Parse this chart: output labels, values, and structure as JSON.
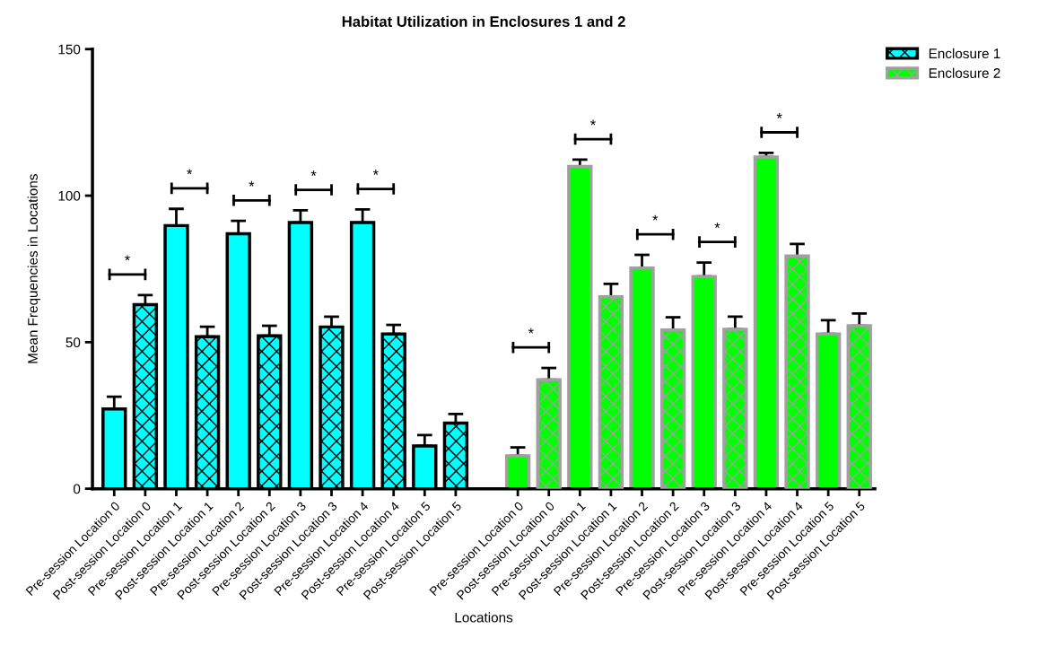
{
  "chart_data": {
    "type": "bar",
    "title": "Habitat Utilization in Enclosures 1 and 2",
    "xlabel": "Locations",
    "ylabel": "Mean Frequencies in Locations",
    "categories": [
      "Pre-session Location 0",
      "Post-session Location 0",
      "Pre-session Location 1",
      "Post-session Location 1",
      "Pre-session Location 2",
      "Post-session Location 2",
      "Pre-session Location 3",
      "Post-session Location 3",
      "Pre-session Location 4",
      "Post-session Location 4",
      "Pre-session Location 5",
      "Post-session Location 5",
      null,
      "Pre-session Location 0",
      "Post-session Location 0",
      "Pre-session Location 1",
      "Post-session Location 1",
      "Pre-session Location 2",
      "Post-session Location 2",
      "Pre-session Location 3",
      "Post-session Location 3",
      "Pre-session Location 4",
      "Post-session Location 4",
      "Pre-session Location 5",
      "Post-session Location 5"
    ],
    "series": [
      {
        "name": "Enclosure 1",
        "color": "#00ffff",
        "values": [
          27.2,
          62.8,
          89.8,
          51.9,
          87.0,
          52.2,
          90.8,
          55.2,
          90.8,
          52.8,
          14.6,
          22.4,
          null,
          null,
          null,
          null,
          null,
          null,
          null,
          null,
          null,
          null,
          null,
          null,
          null
        ],
        "errors": [
          4.2,
          3.3,
          5.7,
          3.4,
          4.4,
          3.4,
          4.2,
          3.5,
          4.5,
          3.1,
          3.7,
          3.1,
          null,
          null,
          null,
          null,
          null,
          null,
          null,
          null,
          null,
          null,
          null,
          null,
          null
        ]
      },
      {
        "name": "Enclosure 2",
        "color": "#00ff00",
        "values": [
          null,
          null,
          null,
          null,
          null,
          null,
          null,
          null,
          null,
          null,
          null,
          null,
          null,
          11.2,
          37.2,
          110.0,
          65.5,
          75.3,
          54.2,
          72.4,
          54.4,
          113.2,
          79.4,
          52.8,
          55.6
        ],
        "errors": [
          null,
          null,
          null,
          null,
          null,
          null,
          null,
          null,
          null,
          null,
          null,
          null,
          null,
          2.9,
          4.0,
          2.3,
          4.4,
          4.5,
          4.3,
          4.8,
          4.3,
          1.4,
          4.1,
          4.7,
          4.2
        ]
      }
    ],
    "ylim": [
      0,
      150
    ],
    "yticks": [
      0,
      50,
      100,
      150
    ],
    "grid": false,
    "legend": "top right",
    "annotations": [
      "*",
      "*",
      "*",
      "*",
      "*",
      "*",
      "*",
      "*",
      "*",
      "*"
    ]
  }
}
